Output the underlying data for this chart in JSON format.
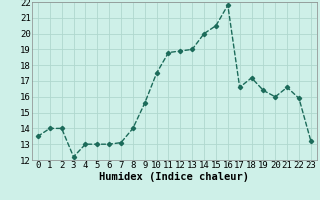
{
  "x": [
    0,
    1,
    2,
    3,
    4,
    5,
    6,
    7,
    8,
    9,
    10,
    11,
    12,
    13,
    14,
    15,
    16,
    17,
    18,
    19,
    20,
    21,
    22,
    23
  ],
  "y": [
    13.5,
    14.0,
    14.0,
    12.2,
    13.0,
    13.0,
    13.0,
    13.1,
    14.0,
    15.6,
    17.5,
    18.8,
    18.9,
    19.0,
    20.0,
    20.5,
    21.8,
    16.6,
    17.2,
    16.4,
    16.0,
    16.6,
    15.9,
    13.2
  ],
  "line_color": "#1c6b5a",
  "marker": "D",
  "marker_size": 2.2,
  "line_width": 1.0,
  "bg_color": "#cef0e8",
  "grid_color": "#b0d8ce",
  "xlabel": "Humidex (Indice chaleur)",
  "xlabel_fontsize": 7.5,
  "tick_fontsize": 6.5,
  "ylim": [
    12,
    22
  ],
  "xlim": [
    -0.5,
    23.5
  ],
  "yticks": [
    12,
    13,
    14,
    15,
    16,
    17,
    18,
    19,
    20,
    21,
    22
  ],
  "xticks": [
    0,
    1,
    2,
    3,
    4,
    5,
    6,
    7,
    8,
    9,
    10,
    11,
    12,
    13,
    14,
    15,
    16,
    17,
    18,
    19,
    20,
    21,
    22,
    23
  ]
}
